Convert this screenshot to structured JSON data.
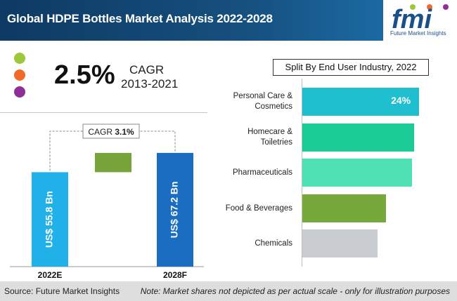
{
  "header": {
    "title": "Global HDPE Bottles Market Analysis 2022-2028"
  },
  "logo": {
    "mark": "fmi",
    "tagline": "Future Market Insights"
  },
  "legend_dots": [
    {
      "color": "#9dc83a"
    },
    {
      "color": "#f26a2a"
    },
    {
      "color": "#8e2f96"
    }
  ],
  "cagr": {
    "value": "2.5%",
    "label": "CAGR",
    "range": "2013-2021"
  },
  "chart_data": [
    {
      "type": "bar",
      "title": "",
      "categories": [
        "2022E",
        "2028F"
      ],
      "values": [
        55.8,
        67.2
      ],
      "value_labels": [
        "US$ 55.8 Bn",
        "US$ 67.2 Bn"
      ],
      "colors": [
        "#1fb1e8",
        "#1a6dc0"
      ],
      "increment_color": "#76a33a",
      "cagr_label": "CAGR",
      "cagr_value": "3.1%",
      "ylim": [
        0,
        85
      ]
    },
    {
      "type": "bar",
      "orientation": "horizontal",
      "title": "Split By End User Industry, 2022",
      "categories": [
        "Personal Care & Cosmetics",
        "Homecare & Toiletries",
        "Pharmaceuticals",
        "Food & Beverages",
        "Chemicals"
      ],
      "category_lines": [
        [
          "Personal Care &",
          "Cosmetics"
        ],
        [
          "Homecare &",
          "Toiletries"
        ],
        [
          "Pharmaceuticals"
        ],
        [
          "Food & Beverages"
        ],
        [
          "Chemicals"
        ]
      ],
      "values": [
        24,
        22.9,
        22.5,
        17.2,
        15.4
      ],
      "colors": [
        "#1fbfcf",
        "#1ccc97",
        "#4fe0b3",
        "#77a83c",
        "#c9cdd1"
      ],
      "value_labels": [
        "24%",
        "",
        "",
        "",
        ""
      ],
      "xlim": [
        0,
        26
      ]
    }
  ],
  "footer": {
    "source": "Source: Future Market Insights",
    "note": "Note: Market shares not depicted as per actual scale - only for illustration purposes"
  }
}
